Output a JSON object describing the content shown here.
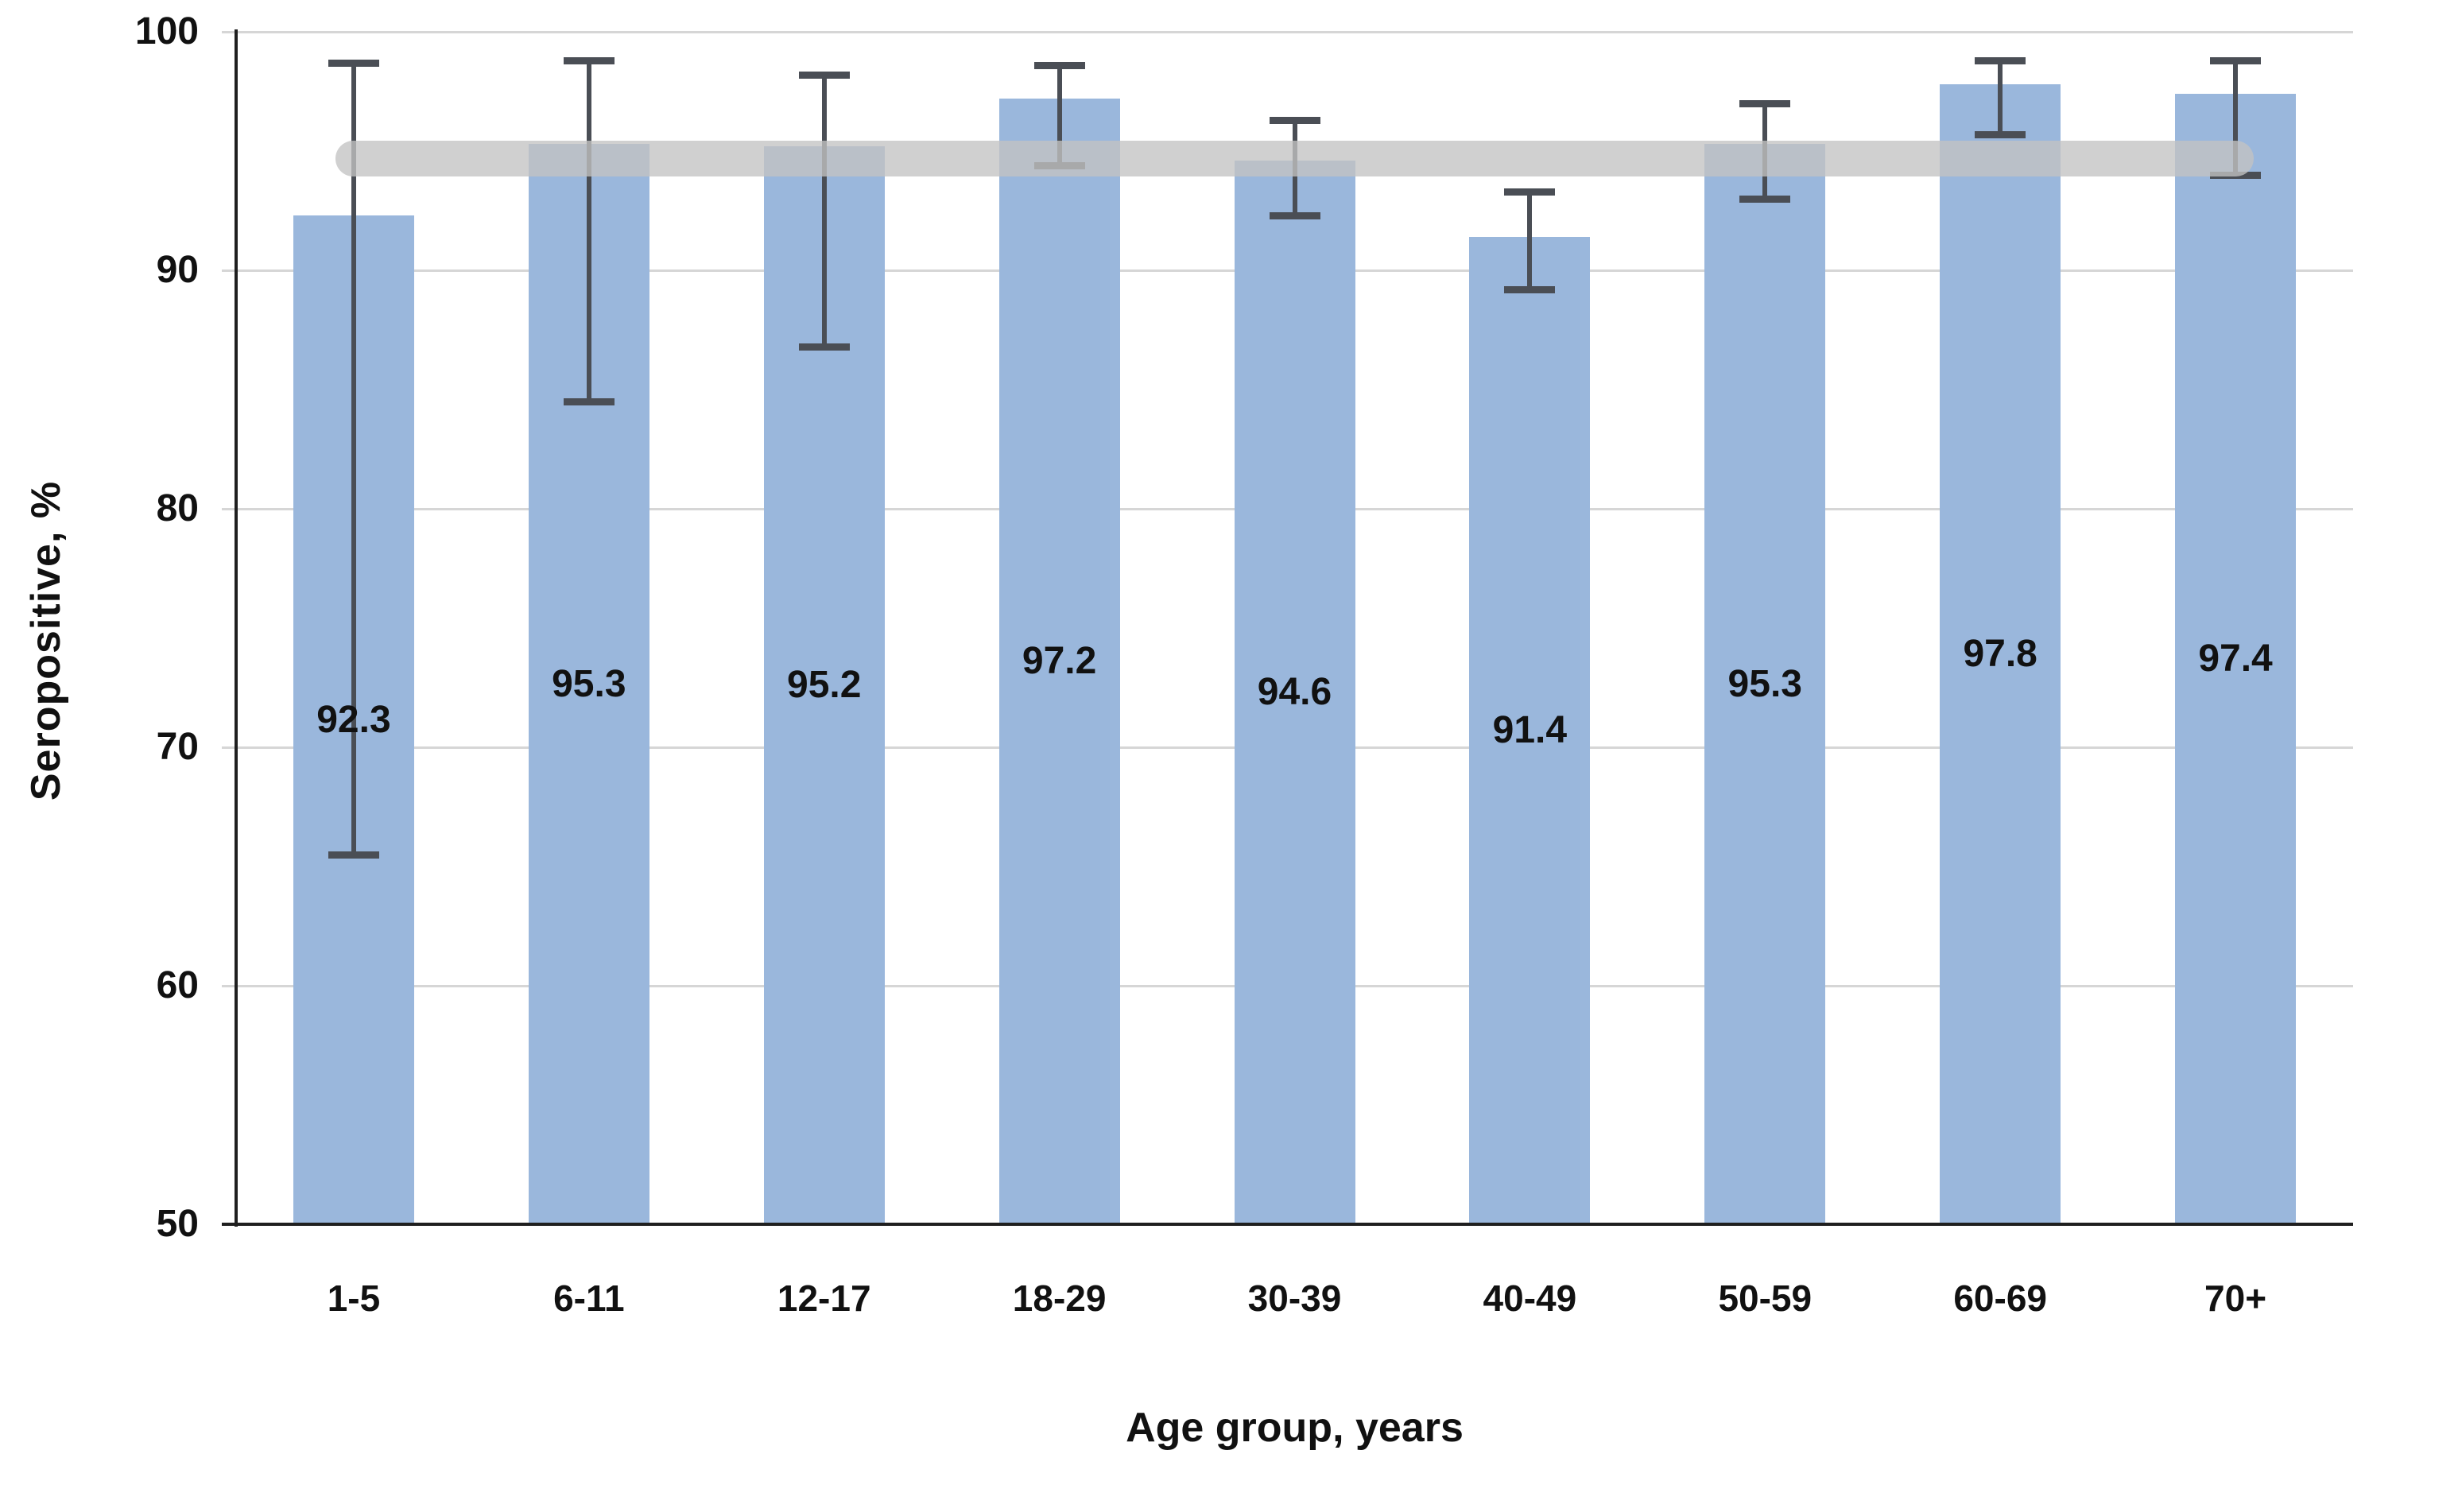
{
  "chart_data": {
    "type": "bar",
    "title": "",
    "xlabel": "Age group, years",
    "ylabel": "Seropositive, %",
    "ylim": [
      50,
      100
    ],
    "yticks": [
      50,
      60,
      70,
      80,
      90,
      100
    ],
    "grid": "horizontal",
    "legend": "none",
    "categories": [
      "1-5",
      "6-11",
      "12-17",
      "18-29",
      "30-39",
      "40-49",
      "50-59",
      "60-69",
      "70+"
    ],
    "values": [
      92.3,
      95.3,
      95.2,
      97.2,
      94.6,
      91.4,
      95.3,
      97.8,
      97.4
    ],
    "value_labels": [
      "92.3",
      "95.3",
      "95.2",
      "97.2",
      "94.6",
      "91.4",
      "95.3",
      "97.8",
      "97.4"
    ],
    "error_bars": {
      "upper": [
        98.7,
        98.8,
        98.2,
        98.6,
        96.3,
        93.3,
        97.0,
        98.8,
        98.8
      ],
      "lower": [
        65.5,
        84.5,
        86.8,
        94.4,
        92.3,
        89.2,
        93.0,
        95.7,
        94.0
      ]
    },
    "reference_band": {
      "value": 94.7,
      "thickness_pct_points": 1.5,
      "from_category": "1-5",
      "to_category": "70+",
      "description": "horizontal rounded gray band spanning bar centers, overlaid on bars"
    },
    "value_label_position": "inside-center",
    "colors": {
      "bar_fill": "#9AB7DC",
      "error_bar": "#4A4E55",
      "gridline": "#D6D6D6",
      "axis": "#1F1F1F",
      "band": "rgba(195,195,195,0.78)",
      "text": "#111111"
    }
  }
}
